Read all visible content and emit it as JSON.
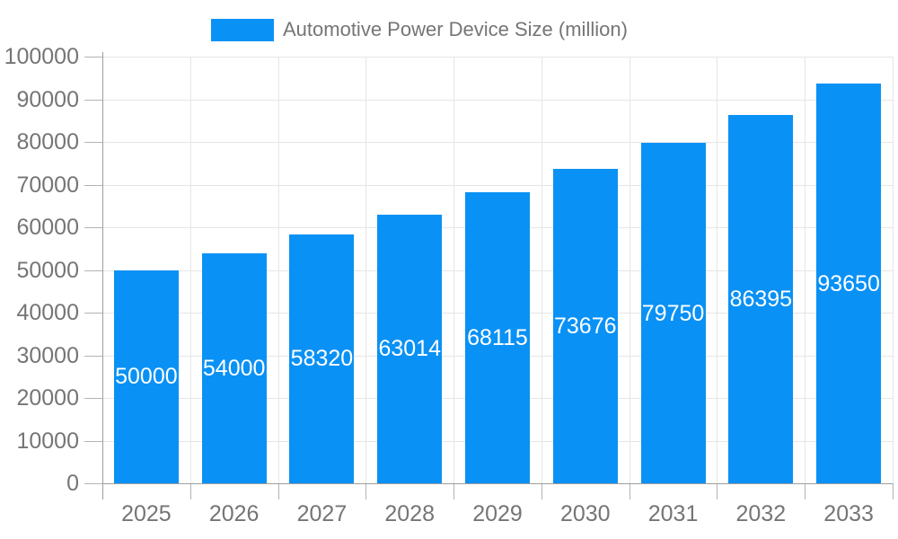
{
  "legend": {
    "label": "Automotive Power Device Size (million)"
  },
  "chart_data": {
    "type": "bar",
    "title": "Automotive Power Device Size (million)",
    "categories": [
      "2025",
      "2026",
      "2027",
      "2028",
      "2029",
      "2030",
      "2031",
      "2032",
      "2033"
    ],
    "values": [
      50000,
      54000,
      58320,
      63014,
      68115,
      73676,
      79750,
      86395,
      93650
    ],
    "series": [
      {
        "name": "Automotive Power Device Size (million)",
        "values": [
          50000,
          54000,
          58320,
          63014,
          68115,
          73676,
          79750,
          86395,
          93650
        ]
      }
    ],
    "xlabel": "",
    "ylabel": "",
    "ylim": [
      0,
      100000
    ],
    "yticks": [
      0,
      10000,
      20000,
      30000,
      40000,
      50000,
      60000,
      70000,
      80000,
      90000,
      100000
    ],
    "grid": "both",
    "legend_position": "top-center",
    "value_labels": "inside-center-white",
    "colors": {
      "bar": "#0a91f5",
      "value_label": "#ffffff",
      "axis_text": "#757575",
      "gridline": "#e6e6e6",
      "tick": "#b3b3b3",
      "axis_line": "#9e9e9e",
      "background": "#ffffff"
    }
  }
}
